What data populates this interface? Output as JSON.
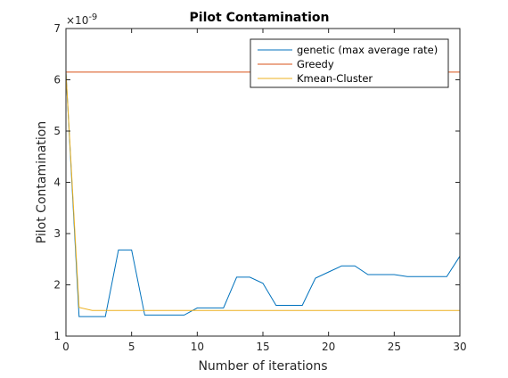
{
  "chart_data": {
    "type": "line",
    "title": "Pilot Contamination",
    "xlabel": "Number of iterations",
    "ylabel": "Pilot Contamination",
    "exponent_label": "×10",
    "exponent_power": "-9",
    "xlim": [
      0,
      30
    ],
    "ylim": [
      1,
      7
    ],
    "xticks": [
      0,
      5,
      10,
      15,
      20,
      25,
      30
    ],
    "yticks": [
      1,
      2,
      3,
      4,
      5,
      6,
      7
    ],
    "grid": false,
    "legend_position": "top-right",
    "series": [
      {
        "name": "genetic (max average rate)",
        "color": "#0072BD",
        "x": [
          0,
          1,
          2,
          3,
          4,
          5,
          6,
          7,
          8,
          9,
          10,
          11,
          12,
          13,
          14,
          15,
          16,
          17,
          18,
          19,
          20,
          21,
          22,
          23,
          24,
          25,
          26,
          27,
          28,
          29,
          30
        ],
        "y": [
          6.15,
          1.38,
          1.38,
          1.38,
          2.68,
          2.68,
          1.41,
          1.41,
          1.41,
          1.41,
          1.55,
          1.55,
          1.55,
          2.15,
          2.15,
          2.03,
          1.6,
          1.6,
          1.6,
          2.13,
          2.25,
          2.37,
          2.37,
          2.2,
          2.2,
          2.2,
          2.16,
          2.16,
          2.16,
          2.16,
          2.56
        ]
      },
      {
        "name": "Greedy",
        "color": "#D95319",
        "x": [
          0,
          30
        ],
        "y": [
          6.15,
          6.15
        ]
      },
      {
        "name": "Kmean-Cluster",
        "color": "#EDB120",
        "x": [
          0,
          1,
          2,
          3,
          4,
          5,
          6,
          7,
          8,
          9,
          10,
          11,
          12,
          13,
          14,
          15,
          16,
          17,
          18,
          19,
          20,
          21,
          22,
          23,
          24,
          25,
          26,
          27,
          28,
          29,
          30
        ],
        "y": [
          6.15,
          1.56,
          1.5,
          1.5,
          1.5,
          1.5,
          1.5,
          1.5,
          1.5,
          1.5,
          1.5,
          1.5,
          1.5,
          1.5,
          1.5,
          1.5,
          1.5,
          1.5,
          1.5,
          1.5,
          1.5,
          1.5,
          1.5,
          1.5,
          1.5,
          1.5,
          1.5,
          1.5,
          1.5,
          1.5,
          1.5
        ]
      }
    ]
  }
}
